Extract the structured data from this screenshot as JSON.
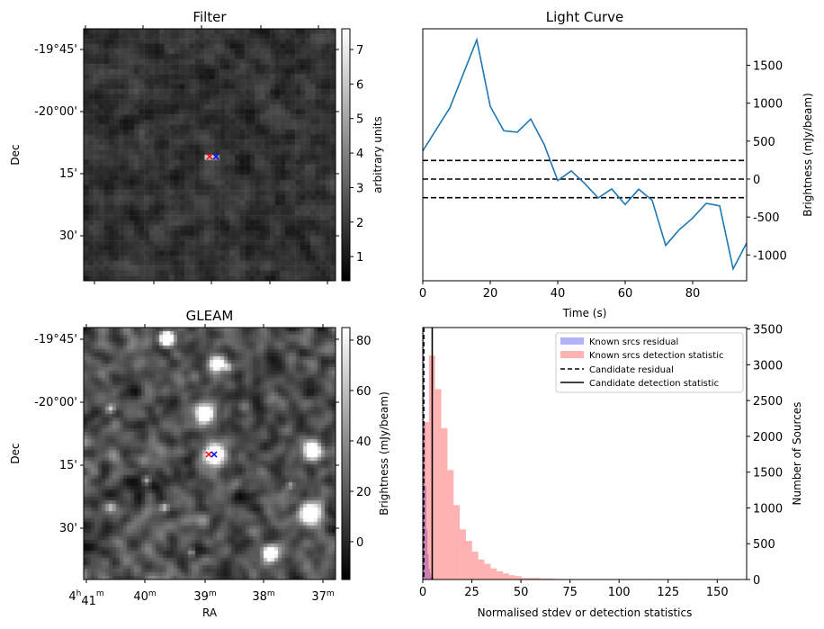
{
  "figure": {
    "filter_panel": {
      "title": "Filter",
      "ylabel": "Dec",
      "dec_ticks": [
        "-19°45'",
        "-20°00'",
        "15'",
        "30'"
      ],
      "colorbar_label": "arbitrary units",
      "colorbar_ticks": [
        1,
        2,
        3,
        4,
        5,
        6,
        7
      ],
      "colorbar_range": [
        0.3,
        7.6
      ],
      "markers": [
        {
          "color": "#ff0000",
          "symbol": "x"
        },
        {
          "color": "#0000ff",
          "symbol": "x"
        }
      ]
    },
    "gleam_panel": {
      "title": "GLEAM",
      "ylabel": "Dec",
      "xlabel": "RA",
      "dec_ticks": [
        "-19°45'",
        "-20°00'",
        "15'",
        "30'"
      ],
      "ra_ticks": [
        {
          "base": "4",
          "h": "h",
          "min": "41",
          "m": "m"
        },
        {
          "base": "40",
          "m": "m"
        },
        {
          "base": "39",
          "m": "m"
        },
        {
          "base": "38",
          "m": "m"
        },
        {
          "base": "37",
          "m": "m"
        }
      ],
      "colorbar_label": "Brightness (mJy/beam)",
      "colorbar_ticks": [
        0,
        20,
        40,
        60,
        80
      ],
      "colorbar_range": [
        -15,
        85
      ],
      "markers": [
        {
          "color": "#ff0000",
          "symbol": "x"
        },
        {
          "color": "#0000ff",
          "symbol": "x"
        }
      ]
    }
  },
  "chart_data": [
    {
      "type": "line",
      "title": "Light Curve",
      "xlabel": "Time (s)",
      "ylabel": "Brightness (mJy/beam)",
      "xlim": [
        0,
        96
      ],
      "ylim": [
        -1340,
        1980
      ],
      "xticks": [
        0,
        20,
        40,
        60,
        80
      ],
      "yticks": [
        -1000,
        -500,
        0,
        500,
        1000,
        1500
      ],
      "line_color": "#1f77b4",
      "x": [
        0,
        8,
        16,
        20,
        24,
        28,
        32,
        36,
        40,
        44,
        48,
        52,
        56,
        60,
        64,
        68,
        72,
        76,
        80,
        84,
        88,
        92,
        96
      ],
      "y": [
        371,
        937,
        1835,
        957,
        637,
        617,
        791,
        454,
        -20,
        107,
        -59,
        -249,
        -130,
        -336,
        -134,
        -281,
        -874,
        -668,
        -514,
        -320,
        -352,
        -1183,
        -842
      ],
      "hlines": [
        {
          "y": 245,
          "style": "dashed"
        },
        {
          "y": 0,
          "style": "dashed"
        },
        {
          "y": -245,
          "style": "dashed"
        }
      ]
    },
    {
      "type": "bar",
      "subtype": "histogram",
      "xlabel": "Normalised stdev or detection statistics",
      "ylabel": "Number of Sources",
      "xlim": [
        0,
        165
      ],
      "ylim": [
        0,
        3520
      ],
      "xticks": [
        0,
        25,
        50,
        75,
        100,
        125,
        150
      ],
      "yticks": [
        0,
        500,
        1000,
        1500,
        2000,
        2500,
        3000,
        3500
      ],
      "legend_position": "top-right",
      "series": [
        {
          "name": "Known srcs residual",
          "color": "#0000ff",
          "alpha": 0.3,
          "bin_start": 0,
          "bin_width": 0.6,
          "values": [
            3450,
            2200,
            1300,
            700,
            350,
            150,
            80,
            40,
            20,
            10
          ]
        },
        {
          "name": "Known srcs detection statistic",
          "color": "#ff0000",
          "alpha": 0.3,
          "bin_start": 0,
          "bin_width": 3.14,
          "values": [
            2200,
            3130,
            2660,
            2115,
            1530,
            1040,
            700,
            540,
            390,
            280,
            220,
            155,
            115,
            85,
            60,
            47,
            22,
            22,
            22,
            15,
            15,
            10,
            8,
            5,
            5,
            5,
            5,
            5,
            5,
            3,
            3,
            0,
            0,
            0,
            0,
            3,
            0,
            0,
            0,
            0,
            0,
            3,
            0,
            0,
            0,
            0,
            0,
            0,
            3,
            0
          ]
        }
      ],
      "vlines": [
        {
          "name": "Candidate residual",
          "x": 0.5,
          "style": "dashed"
        },
        {
          "name": "Candidate detection statistic",
          "x": 4.8,
          "style": "solid"
        }
      ]
    }
  ]
}
